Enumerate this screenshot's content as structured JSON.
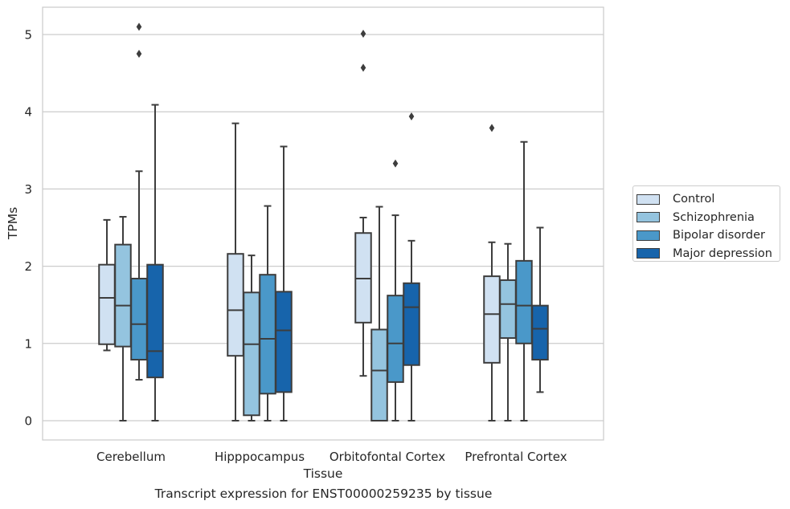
{
  "chart_data": {
    "type": "boxplot",
    "caption": "Transcript expression for ENST00000259235 by tissue",
    "xlabel": "Tissue",
    "ylabel": "TPMs",
    "ylim": [
      -0.25,
      5.35
    ],
    "yticks": [
      0,
      1,
      2,
      3,
      4,
      5
    ],
    "grid": true,
    "legend_position": "right",
    "categories": [
      "Cerebellum",
      "Hipppocampus",
      "Orbitofontal Cortex",
      "Prefrontal Cortex"
    ],
    "series": [
      {
        "name": "Control",
        "color": "#d0e1f2",
        "boxes": [
          {
            "whislo": 0.91,
            "q1": 0.99,
            "med": 1.59,
            "q3": 2.02,
            "whishi": 2.6,
            "fliers": []
          },
          {
            "whislo": 0.0,
            "q1": 0.84,
            "med": 1.43,
            "q3": 2.16,
            "whishi": 3.85,
            "fliers": []
          },
          {
            "whislo": 0.58,
            "q1": 1.27,
            "med": 1.84,
            "q3": 2.43,
            "whishi": 2.63,
            "fliers": [
              5.01,
              4.57
            ]
          },
          {
            "whislo": 0.0,
            "q1": 0.75,
            "med": 1.38,
            "q3": 1.87,
            "whishi": 2.31,
            "fliers": [
              3.79
            ]
          }
        ]
      },
      {
        "name": "Schizophrenia",
        "color": "#94c4df",
        "boxes": [
          {
            "whislo": 0.0,
            "q1": 0.96,
            "med": 1.49,
            "q3": 2.28,
            "whishi": 2.64,
            "fliers": []
          },
          {
            "whislo": 0.0,
            "q1": 0.07,
            "med": 0.99,
            "q3": 1.66,
            "whishi": 2.14,
            "fliers": []
          },
          {
            "whislo": 0.0,
            "q1": 0.0,
            "med": 0.65,
            "q3": 1.18,
            "whishi": 2.77,
            "fliers": []
          },
          {
            "whislo": 0.0,
            "q1": 1.07,
            "med": 1.51,
            "q3": 1.82,
            "whishi": 2.29,
            "fliers": []
          }
        ]
      },
      {
        "name": "Bipolar disorder",
        "color": "#4a98c9",
        "boxes": [
          {
            "whislo": 0.53,
            "q1": 0.79,
            "med": 1.25,
            "q3": 1.84,
            "whishi": 3.23,
            "fliers": [
              5.1,
              4.75
            ]
          },
          {
            "whislo": 0.0,
            "q1": 0.35,
            "med": 1.06,
            "q3": 1.89,
            "whishi": 2.78,
            "fliers": []
          },
          {
            "whislo": 0.0,
            "q1": 0.5,
            "med": 1.0,
            "q3": 1.62,
            "whishi": 2.66,
            "fliers": [
              3.33
            ]
          },
          {
            "whislo": 0.0,
            "q1": 1.0,
            "med": 1.49,
            "q3": 2.07,
            "whishi": 3.61,
            "fliers": []
          }
        ]
      },
      {
        "name": "Major depression",
        "color": "#1764ab",
        "boxes": [
          {
            "whislo": 0.0,
            "q1": 0.56,
            "med": 0.9,
            "q3": 2.02,
            "whishi": 4.09,
            "fliers": []
          },
          {
            "whislo": 0.0,
            "q1": 0.37,
            "med": 1.17,
            "q3": 1.67,
            "whishi": 3.55,
            "fliers": []
          },
          {
            "whislo": 0.0,
            "q1": 0.72,
            "med": 1.47,
            "q3": 1.78,
            "whishi": 2.33,
            "fliers": [
              3.94
            ]
          },
          {
            "whislo": 0.37,
            "q1": 0.79,
            "med": 1.19,
            "q3": 1.49,
            "whishi": 2.5,
            "fliers": []
          }
        ]
      }
    ]
  }
}
